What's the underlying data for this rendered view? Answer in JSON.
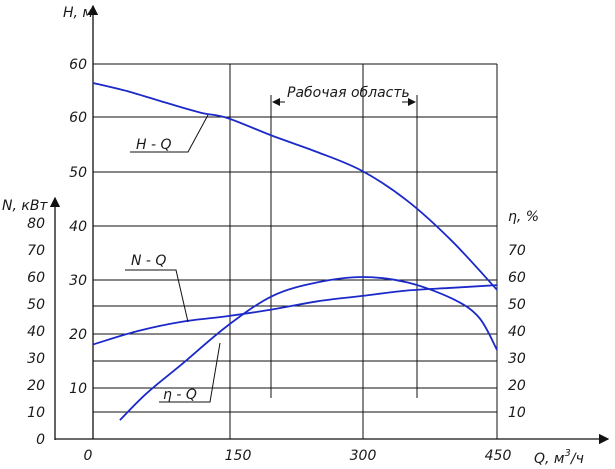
{
  "chart_data": {
    "type": "line",
    "x_axis": {
      "label": "Q, м³/ч",
      "label_base": "Q, м",
      "label_sup": "3",
      "label_tail": "/ч",
      "min": 0,
      "max": 450,
      "ticks": [
        "0",
        "150",
        "300",
        "450"
      ]
    },
    "y_axes": {
      "H": {
        "label": "H, м",
        "min": 0,
        "max": 60,
        "ticks": [
          "10",
          "20",
          "30",
          "40",
          "50",
          "60",
          "60"
        ]
      },
      "N": {
        "label": "N, кВт",
        "min": 0,
        "max": 80,
        "ticks": [
          "0",
          "10",
          "20",
          "30",
          "40",
          "50",
          "60",
          "70",
          "80"
        ]
      },
      "eta": {
        "label": "η, %",
        "min": 0,
        "max": 80,
        "ticks": [
          "10",
          "20",
          "30",
          "40",
          "50",
          "60",
          "70"
        ]
      }
    },
    "series": [
      {
        "name": "H - Q",
        "axis": "H",
        "color": "#1c29c9",
        "points": [
          [
            0,
            66.3
          ],
          [
            40,
            64.7
          ],
          [
            80,
            62.7
          ],
          [
            120,
            60.8
          ],
          [
            150,
            59.8
          ],
          [
            200,
            56.5
          ],
          [
            250,
            53.5
          ],
          [
            300,
            50
          ],
          [
            350,
            44.5
          ],
          [
            400,
            37
          ],
          [
            450,
            28
          ]
        ]
      },
      {
        "name": "N - Q",
        "axis": "N",
        "color": "#1c29c9",
        "points": [
          [
            0,
            35
          ],
          [
            50,
            40
          ],
          [
            100,
            43.5
          ],
          [
            150,
            45.5
          ],
          [
            200,
            48
          ],
          [
            250,
            51
          ],
          [
            300,
            53
          ],
          [
            350,
            55
          ],
          [
            400,
            56
          ],
          [
            450,
            57
          ]
        ]
      },
      {
        "name": "η - Q",
        "axis": "eta",
        "color": "#1c29c9",
        "points": [
          [
            30,
            7
          ],
          [
            60,
            17
          ],
          [
            100,
            28
          ],
          [
            150,
            42
          ],
          [
            200,
            53
          ],
          [
            250,
            58
          ],
          [
            300,
            60
          ],
          [
            350,
            58
          ],
          [
            400,
            52
          ],
          [
            430,
            45
          ],
          [
            450,
            33
          ]
        ]
      }
    ],
    "work_area": {
      "label": "Рабочая область",
      "x_from": 200,
      "x_to": 360
    },
    "grid": true
  }
}
